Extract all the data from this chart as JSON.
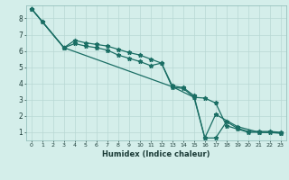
{
  "xlabel": "Humidex (Indice chaleur)",
  "ylabel": "",
  "bg_color": "#d4eeea",
  "line_color": "#1a6e64",
  "grid_color": "#b8d8d4",
  "xlim": [
    -0.5,
    23.5
  ],
  "ylim": [
    0.5,
    8.8
  ],
  "xticks": [
    0,
    1,
    2,
    3,
    4,
    5,
    6,
    7,
    8,
    9,
    10,
    11,
    12,
    13,
    14,
    15,
    16,
    17,
    18,
    19,
    20,
    21,
    22,
    23
  ],
  "yticks": [
    1,
    2,
    3,
    4,
    5,
    6,
    7,
    8
  ],
  "line1_x": [
    0,
    1,
    3,
    4,
    5,
    6,
    7,
    8,
    9,
    10,
    11,
    12,
    13,
    14,
    15,
    16,
    17,
    18,
    19,
    20,
    21,
    22,
    23
  ],
  "line1_y": [
    8.6,
    7.8,
    6.2,
    6.65,
    6.5,
    6.4,
    6.3,
    6.1,
    5.9,
    5.75,
    5.5,
    5.25,
    3.85,
    3.75,
    3.25,
    0.65,
    0.65,
    1.65,
    1.25,
    1.05,
    1.05,
    1.05,
    1.0
  ],
  "line2_x": [
    0,
    1,
    3,
    4,
    5,
    6,
    7,
    8,
    9,
    10,
    11,
    12,
    13,
    14,
    15,
    16,
    17,
    18,
    19,
    20,
    21,
    22,
    23
  ],
  "line2_y": [
    8.6,
    7.8,
    6.2,
    6.45,
    6.3,
    6.2,
    6.05,
    5.75,
    5.55,
    5.35,
    5.1,
    5.25,
    3.75,
    3.7,
    3.15,
    3.1,
    2.8,
    1.4,
    1.2,
    1.0,
    1.0,
    1.0,
    0.95
  ],
  "line3_x": [
    0,
    3,
    13,
    15,
    16,
    17,
    19,
    21,
    23
  ],
  "line3_y": [
    8.6,
    6.2,
    3.8,
    3.15,
    0.65,
    2.1,
    1.35,
    1.0,
    0.95
  ]
}
